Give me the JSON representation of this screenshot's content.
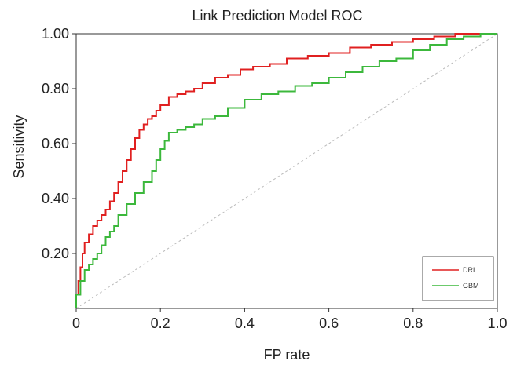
{
  "chart_data": {
    "type": "line",
    "title": "Link Prediction Model ROC",
    "xlabel": "FP rate",
    "ylabel": "Sensitivity",
    "xlim": [
      0,
      1
    ],
    "ylim": [
      0,
      1
    ],
    "grid": false,
    "legend_position": "bottom-right",
    "x_ticks": [
      {
        "value": 0,
        "label": "0"
      },
      {
        "value": 0.2,
        "label": "0.2"
      },
      {
        "value": 0.4,
        "label": "0.4"
      },
      {
        "value": 0.6,
        "label": "0.6"
      },
      {
        "value": 0.8,
        "label": "0.8"
      },
      {
        "value": 1.0,
        "label": "1.0"
      }
    ],
    "y_ticks": [
      {
        "value": 0.2,
        "label": "0.20"
      },
      {
        "value": 0.4,
        "label": "0.40"
      },
      {
        "value": 0.6,
        "label": "0.60"
      },
      {
        "value": 0.8,
        "label": "0.80"
      },
      {
        "value": 1.0,
        "label": "1.00"
      }
    ],
    "reference_line": {
      "x": [
        0,
        1
      ],
      "y": [
        0,
        1
      ],
      "color": "#bbbbbb"
    },
    "series": [
      {
        "name": "DRL",
        "color": "#e02020",
        "x": [
          0.0,
          0.005,
          0.01,
          0.015,
          0.02,
          0.03,
          0.04,
          0.05,
          0.06,
          0.07,
          0.08,
          0.09,
          0.1,
          0.11,
          0.12,
          0.13,
          0.14,
          0.15,
          0.16,
          0.17,
          0.18,
          0.19,
          0.2,
          0.22,
          0.24,
          0.26,
          0.28,
          0.3,
          0.33,
          0.36,
          0.39,
          0.42,
          0.46,
          0.5,
          0.55,
          0.6,
          0.65,
          0.7,
          0.75,
          0.8,
          0.85,
          0.9,
          0.95,
          1.0
        ],
        "y": [
          0.0,
          0.05,
          0.1,
          0.15,
          0.2,
          0.24,
          0.27,
          0.3,
          0.32,
          0.34,
          0.36,
          0.39,
          0.42,
          0.46,
          0.5,
          0.54,
          0.58,
          0.62,
          0.65,
          0.67,
          0.69,
          0.7,
          0.72,
          0.74,
          0.77,
          0.78,
          0.79,
          0.8,
          0.82,
          0.84,
          0.85,
          0.87,
          0.88,
          0.89,
          0.91,
          0.92,
          0.93,
          0.95,
          0.96,
          0.97,
          0.98,
          0.99,
          1.0,
          1.0
        ]
      },
      {
        "name": "GBM",
        "color": "#3cb83c",
        "x": [
          0.0,
          0.01,
          0.02,
          0.03,
          0.04,
          0.05,
          0.06,
          0.07,
          0.08,
          0.09,
          0.1,
          0.12,
          0.14,
          0.16,
          0.18,
          0.19,
          0.2,
          0.21,
          0.22,
          0.24,
          0.26,
          0.28,
          0.3,
          0.33,
          0.36,
          0.4,
          0.44,
          0.48,
          0.52,
          0.56,
          0.6,
          0.64,
          0.68,
          0.72,
          0.76,
          0.8,
          0.84,
          0.88,
          0.92,
          0.96,
          1.0
        ],
        "y": [
          0.0,
          0.05,
          0.1,
          0.14,
          0.16,
          0.18,
          0.2,
          0.23,
          0.26,
          0.28,
          0.3,
          0.34,
          0.38,
          0.42,
          0.46,
          0.5,
          0.54,
          0.58,
          0.61,
          0.64,
          0.65,
          0.66,
          0.67,
          0.69,
          0.7,
          0.73,
          0.76,
          0.78,
          0.79,
          0.81,
          0.82,
          0.84,
          0.86,
          0.88,
          0.9,
          0.91,
          0.94,
          0.96,
          0.98,
          0.99,
          1.0
        ]
      }
    ]
  }
}
